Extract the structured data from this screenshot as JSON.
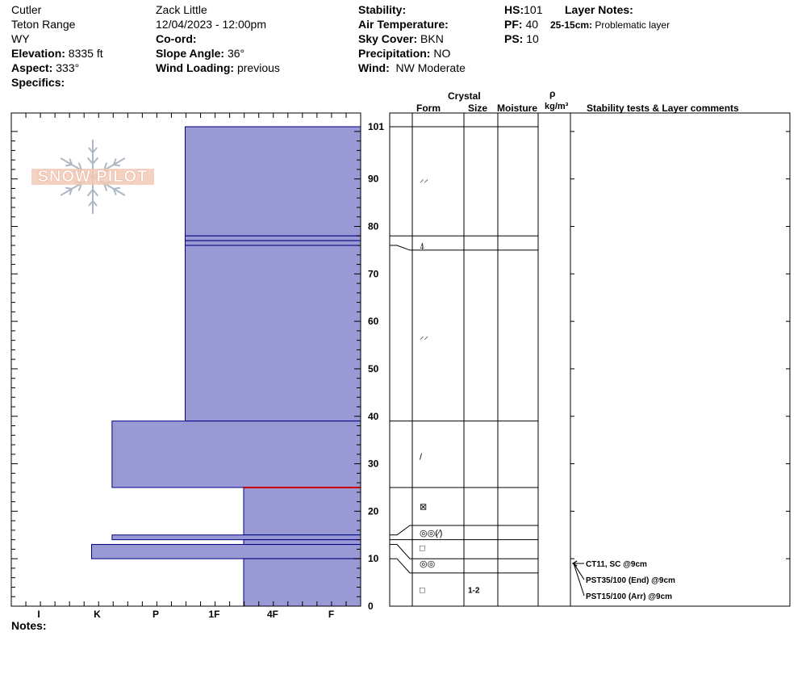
{
  "header": {
    "col1": {
      "location": "Cutler",
      "range": "Teton Range",
      "state": "WY",
      "elevation_label": "Elevation:",
      "elevation_value": "8335 ft",
      "aspect_label": "Aspect:",
      "aspect_value": "333°",
      "specifics_label": "Specifics:"
    },
    "col2": {
      "observer": "Zack Little",
      "datetime": "12/04/2023 - 12:00pm",
      "coord_label": "Co-ord:",
      "slope_label": "Slope Angle:",
      "slope_value": "36°",
      "wind_loading_label": "Wind Loading:",
      "wind_loading_value": "previous"
    },
    "col3": {
      "stability_label": "Stability:",
      "air_temp_label": "Air Temperature:",
      "sky_label": "Sky Cover:",
      "sky_value": "BKN",
      "precip_label": "Precipitation:",
      "precip_value": "NO",
      "wind_label": "Wind:",
      "wind_value": "NW Moderate"
    },
    "col4": {
      "hs_label": "HS:",
      "hs_value": "101",
      "pf_label": "PF:",
      "pf_value": "40",
      "ps_label": "PS:",
      "ps_value": "10"
    },
    "layer_notes": {
      "title": "Layer Notes:",
      "range": "25-15cm:",
      "text": "Problematic layer"
    }
  },
  "logo": {
    "text": "SNOW PILOT"
  },
  "columns": {
    "crystal": "Crystal",
    "form": "Form",
    "size": "Size",
    "moisture": "Moisture",
    "rho": "ρ",
    "density_unit": "kg/m³",
    "comments": "Stability tests & Layer comments"
  },
  "notes_label": "Notes:",
  "colors": {
    "fill": "#9999d6",
    "stroke": "#000080",
    "red_line": "#cc0000"
  },
  "chart_data": {
    "type": "bar",
    "orientation": "horizontal",
    "y_axis": {
      "range": [
        0,
        101
      ],
      "ticks": [
        0,
        10,
        20,
        30,
        40,
        50,
        60,
        70,
        80,
        90,
        101
      ]
    },
    "hardness_scale": [
      "I",
      "K",
      "P",
      "1F",
      "4F",
      "F"
    ],
    "hardness_note": "hardness levels: F=1, 4F=2, 1F=3, P=4, K=5, I=6 (bars extend from right edge toward left)",
    "layers": [
      {
        "top": 101,
        "bottom": 78,
        "hardness": 3
      },
      {
        "top": 78,
        "bottom": 77,
        "hardness": 3
      },
      {
        "top": 77,
        "bottom": 76,
        "hardness": 3
      },
      {
        "top": 76,
        "bottom": 39,
        "hardness": 3
      },
      {
        "top": 39,
        "bottom": 25,
        "hardness": 4.25
      },
      {
        "top": 25,
        "bottom": 15,
        "hardness": 2
      },
      {
        "top": 15,
        "bottom": 14,
        "hardness": 4.25
      },
      {
        "top": 14,
        "bottom": 13,
        "hardness": 2
      },
      {
        "top": 13,
        "bottom": 10,
        "hardness": 4.6
      },
      {
        "top": 10,
        "bottom": 0,
        "hardness": 2
      }
    ],
    "red_line_at": 25,
    "layer_boundaries": [
      101,
      78,
      75,
      39,
      25,
      17,
      14,
      10,
      7
    ],
    "connector_map": [
      {
        "left": 78,
        "right": 78
      },
      {
        "left": 76,
        "right": 75
      },
      {
        "left": 15,
        "right": 17
      },
      {
        "left": 14,
        "right": 14
      },
      {
        "left": 13,
        "right": 10
      },
      {
        "left": 10,
        "right": 7
      }
    ],
    "grain_symbols": [
      {
        "y": 90,
        "sym": "⸝⸝"
      },
      {
        "y": 76,
        "sym": "⍋"
      },
      {
        "y": 57,
        "sym": "⸝⸝"
      },
      {
        "y": 31.5,
        "sym": "/"
      },
      {
        "y": 21,
        "sym": "⊠"
      },
      {
        "y": 15.5,
        "sym": "◎◎(⁄)"
      },
      {
        "y": 12.3,
        "sym": "□"
      },
      {
        "y": 9,
        "sym": "◎◎"
      },
      {
        "y": 3.5,
        "sym": "□"
      }
    ],
    "sizes": [
      {
        "y": 3.5,
        "text": "1-2"
      }
    ],
    "tests": [
      {
        "at": 9,
        "text": "CT11, SC @9cm"
      },
      {
        "at": 9,
        "text": "PST35/100 (End) @9cm"
      },
      {
        "at": 9,
        "text": "PST15/100 (Arr) @9cm"
      }
    ]
  }
}
